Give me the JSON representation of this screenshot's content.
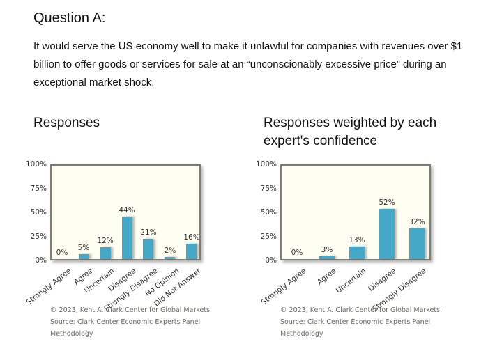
{
  "header": {
    "title": "Question A:",
    "question": "It would serve the US economy well to make it unlawful for companies with revenues over $1 billion to offer goods or services for sale at an “unconscionably excessive price” during an exceptional market shock."
  },
  "sections": [
    {
      "heading": "Responses"
    },
    {
      "heading": "Responses weighted by each expert's confidence"
    }
  ],
  "footer": {
    "copyright": "© 2023, Kent A. Clark Center for Global Markets.",
    "source": "Source: Clark Center Economic Experts Panel",
    "methodology": "Methodology"
  },
  "colors": {
    "bar": "#44a8c6",
    "plot_background": "#fffef2",
    "plot_border": "#7e7e74",
    "chart_label": "#333333",
    "footer_text": "#6b6862"
  },
  "chart_data": [
    {
      "type": "bar",
      "title": "Responses",
      "categories": [
        "Strongly Agree",
        "Agree",
        "Uncertain",
        "Disagree",
        "Strongly Disagree",
        "No Opinion",
        "Did Not Answer"
      ],
      "values": [
        0,
        5,
        12,
        44,
        21,
        2,
        16
      ],
      "value_labels": [
        "0%",
        "5%",
        "12%",
        "44%",
        "21%",
        "2%",
        "16%"
      ],
      "xlabel": "",
      "ylabel": "",
      "ylim": [
        0,
        100
      ],
      "yticks": [
        0,
        25,
        50,
        75,
        100
      ],
      "ytick_labels": [
        "0%",
        "25%",
        "50%",
        "75%",
        "100%"
      ],
      "grid": false,
      "legend": false
    },
    {
      "type": "bar",
      "title": "Responses weighted by each expert's confidence",
      "categories": [
        "Strongly Agree",
        "Agree",
        "Uncertain",
        "Disagree",
        "Strongly Disagree"
      ],
      "values": [
        0,
        3,
        13,
        52,
        32
      ],
      "value_labels": [
        "0%",
        "3%",
        "13%",
        "52%",
        "32%"
      ],
      "xlabel": "",
      "ylabel": "",
      "ylim": [
        0,
        100
      ],
      "yticks": [
        0,
        25,
        50,
        75,
        100
      ],
      "ytick_labels": [
        "0%",
        "25%",
        "50%",
        "75%",
        "100%"
      ],
      "grid": false,
      "legend": false
    }
  ]
}
